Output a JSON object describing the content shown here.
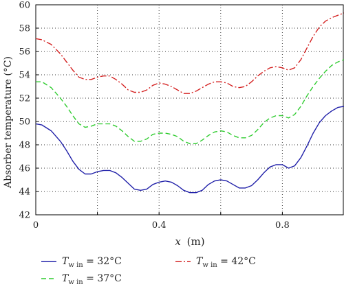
{
  "chart_data": {
    "type": "line",
    "xlabel_var": "x",
    "xlabel_unit": "(m)",
    "ylabel": "Absorber temperature (°C)",
    "xlim": [
      0,
      1.0
    ],
    "ylim": [
      42,
      60
    ],
    "xticks": [
      0,
      0.4,
      0.8
    ],
    "xtick_labels": [
      "0",
      "0.4",
      "0.8"
    ],
    "yticks": [
      42,
      44,
      46,
      48,
      50,
      52,
      54,
      56,
      58,
      60
    ],
    "ytick_labels": [
      "42",
      "44",
      "46",
      "48",
      "50",
      "52",
      "54",
      "56",
      "58",
      "60"
    ],
    "grid": true,
    "legend_position": "bottom",
    "series": [
      {
        "name": "T_w in = 32°C",
        "legend_var": "T",
        "legend_sub": "w in",
        "legend_value": " = 32°C",
        "color": "#1f1fa8",
        "dash": "solid",
        "x": [
          0,
          0.02,
          0.05,
          0.08,
          0.1,
          0.12,
          0.14,
          0.16,
          0.18,
          0.2,
          0.22,
          0.24,
          0.26,
          0.28,
          0.3,
          0.32,
          0.34,
          0.36,
          0.38,
          0.4,
          0.42,
          0.44,
          0.46,
          0.48,
          0.5,
          0.52,
          0.54,
          0.56,
          0.58,
          0.6,
          0.62,
          0.64,
          0.66,
          0.68,
          0.7,
          0.72,
          0.74,
          0.76,
          0.78,
          0.8,
          0.82,
          0.84,
          0.86,
          0.88,
          0.9,
          0.92,
          0.94,
          0.96,
          0.98,
          1.0
        ],
        "y": [
          49.8,
          49.7,
          49.2,
          48.3,
          47.5,
          46.6,
          45.9,
          45.5,
          45.5,
          45.7,
          45.8,
          45.8,
          45.6,
          45.2,
          44.7,
          44.2,
          44.1,
          44.2,
          44.6,
          44.8,
          44.9,
          44.8,
          44.5,
          44.1,
          43.9,
          43.9,
          44.1,
          44.6,
          44.9,
          45.0,
          44.9,
          44.6,
          44.3,
          44.3,
          44.5,
          45.0,
          45.6,
          46.1,
          46.3,
          46.3,
          46.0,
          46.2,
          46.9,
          47.9,
          49.0,
          49.9,
          50.5,
          50.9,
          51.2,
          51.3
        ]
      },
      {
        "name": "T_w in = 37°C",
        "legend_var": "T",
        "legend_sub": "w in",
        "legend_value": " = 37°C",
        "color": "#2fcc2f",
        "dash": "7,4",
        "x": [
          0,
          0.02,
          0.05,
          0.08,
          0.1,
          0.12,
          0.14,
          0.16,
          0.18,
          0.2,
          0.22,
          0.24,
          0.26,
          0.28,
          0.3,
          0.32,
          0.34,
          0.36,
          0.38,
          0.4,
          0.42,
          0.44,
          0.46,
          0.48,
          0.5,
          0.52,
          0.54,
          0.56,
          0.58,
          0.6,
          0.62,
          0.64,
          0.66,
          0.68,
          0.7,
          0.72,
          0.74,
          0.76,
          0.78,
          0.8,
          0.82,
          0.84,
          0.86,
          0.88,
          0.9,
          0.92,
          0.94,
          0.96,
          0.98,
          1.0
        ],
        "y": [
          53.4,
          53.4,
          52.9,
          52.0,
          51.3,
          50.5,
          49.8,
          49.5,
          49.6,
          49.8,
          49.8,
          49.8,
          49.6,
          49.2,
          48.7,
          48.3,
          48.3,
          48.5,
          48.9,
          49.0,
          49.0,
          48.9,
          48.7,
          48.3,
          48.1,
          48.1,
          48.4,
          48.8,
          49.1,
          49.2,
          49.1,
          48.8,
          48.6,
          48.6,
          48.8,
          49.3,
          49.9,
          50.3,
          50.5,
          50.5,
          50.3,
          50.6,
          51.3,
          52.2,
          53.0,
          53.7,
          54.3,
          54.8,
          55.1,
          55.3
        ]
      },
      {
        "name": "T_w in = 42°C",
        "legend_var": "T",
        "legend_sub": "w in",
        "legend_value": " = 42°C",
        "color": "#d42020",
        "dash": "9,3,2,3",
        "x": [
          0,
          0.02,
          0.05,
          0.08,
          0.1,
          0.12,
          0.14,
          0.16,
          0.18,
          0.2,
          0.22,
          0.24,
          0.26,
          0.28,
          0.3,
          0.32,
          0.34,
          0.36,
          0.38,
          0.4,
          0.42,
          0.44,
          0.46,
          0.48,
          0.5,
          0.52,
          0.54,
          0.56,
          0.58,
          0.6,
          0.62,
          0.64,
          0.66,
          0.68,
          0.7,
          0.72,
          0.74,
          0.76,
          0.78,
          0.8,
          0.82,
          0.84,
          0.86,
          0.88,
          0.9,
          0.92,
          0.94,
          0.96,
          0.98,
          1.0
        ],
        "y": [
          57.1,
          57.0,
          56.6,
          55.8,
          55.1,
          54.4,
          53.8,
          53.6,
          53.6,
          53.8,
          53.9,
          53.9,
          53.6,
          53.2,
          52.7,
          52.5,
          52.5,
          52.7,
          53.1,
          53.3,
          53.2,
          53.0,
          52.7,
          52.4,
          52.4,
          52.6,
          52.9,
          53.2,
          53.4,
          53.4,
          53.3,
          53.0,
          52.9,
          53.0,
          53.4,
          53.9,
          54.3,
          54.6,
          54.7,
          54.6,
          54.4,
          54.6,
          55.3,
          56.3,
          57.3,
          58.1,
          58.6,
          58.9,
          59.1,
          59.3
        ]
      }
    ]
  }
}
